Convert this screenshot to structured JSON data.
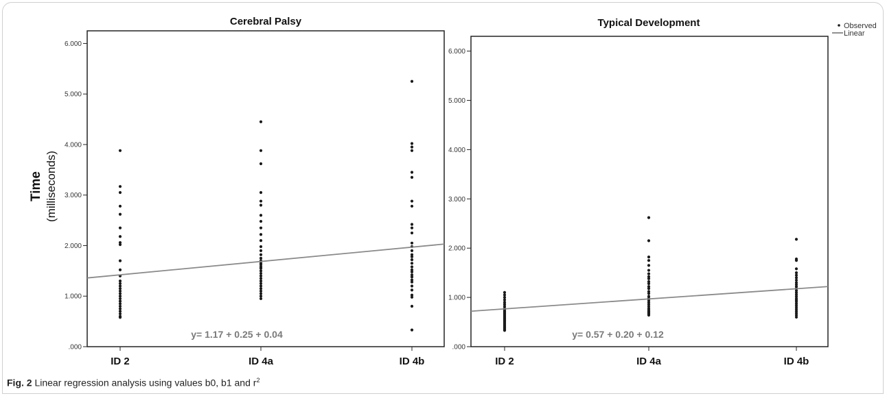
{
  "caption": {
    "label": "Fig. 2",
    "text": "Linear regression analysis using values b0, b1 and r",
    "superscript": "2"
  },
  "legend": {
    "observed": "Observed",
    "linear": "Linear"
  },
  "ylabel_main": "Time",
  "ylabel_sub": "(milliseconds)",
  "colors": {
    "points": "#1a1a1a",
    "fit_line": "#8a8a8a",
    "equation": "#7a7a7a"
  },
  "chart_data": [
    {
      "type": "scatter",
      "title": "Cerebral Palsy",
      "categories": [
        "ID 2",
        "ID 4a",
        "ID 4b"
      ],
      "y_tick_labels": [
        ".000",
        "1.000",
        "2.000",
        "3.000",
        "4.000",
        "5.000",
        "6.000"
      ],
      "ylim": [
        0,
        6.25
      ],
      "grid": false,
      "equation": "y= 1.17 + 0.25 + 0.04",
      "fit_line": {
        "y_at_left_edge": 1.36,
        "y_at_right_edge": 2.03
      },
      "points": [
        [
          3.88,
          3.17,
          3.05,
          2.78,
          2.62,
          2.35,
          2.18,
          2.06,
          2.02,
          1.7,
          1.52,
          1.4,
          1.3,
          1.25,
          1.2,
          1.15,
          1.1,
          1.05,
          1.0,
          0.95,
          0.9,
          0.85,
          0.8,
          0.75,
          0.7,
          0.65,
          0.6,
          0.58
        ],
        [
          4.45,
          3.88,
          3.62,
          3.05,
          2.88,
          2.8,
          2.6,
          2.48,
          2.35,
          2.22,
          2.1,
          1.98,
          1.9,
          1.82,
          1.75,
          1.7,
          1.65,
          1.62,
          1.58,
          1.55,
          1.5,
          1.45,
          1.4,
          1.35,
          1.3,
          1.25,
          1.2,
          1.15,
          1.1,
          1.05,
          1.0,
          0.95
        ],
        [
          5.25,
          4.02,
          3.95,
          3.88,
          3.45,
          3.35,
          2.88,
          2.78,
          2.42,
          2.35,
          2.25,
          2.05,
          1.98,
          1.9,
          1.82,
          1.78,
          1.72,
          1.65,
          1.58,
          1.52,
          1.48,
          1.42,
          1.38,
          1.32,
          1.28,
          1.2,
          1.12,
          1.02,
          0.98,
          0.8,
          0.33
        ]
      ]
    },
    {
      "type": "scatter",
      "title": "Typical Development",
      "categories": [
        "ID 2",
        "ID 4a",
        "ID 4b"
      ],
      "y_tick_labels": [
        ".000",
        "1.000",
        "2.000",
        "3.000",
        "4.000",
        "5.000",
        "6.000"
      ],
      "ylim": [
        0,
        6.3
      ],
      "grid": false,
      "equation": "y= 0.57 + 0.20 + 0.12",
      "fit_line": {
        "y_at_left_edge": 0.72,
        "y_at_right_edge": 1.22
      },
      "points": [
        [
          1.1,
          1.05,
          1.0,
          0.95,
          0.9,
          0.86,
          0.82,
          0.78,
          0.75,
          0.72,
          0.7,
          0.68,
          0.66,
          0.64,
          0.62,
          0.6,
          0.58,
          0.56,
          0.54,
          0.52,
          0.5,
          0.48,
          0.46,
          0.44,
          0.42,
          0.4,
          0.38,
          0.36,
          0.34,
          0.33
        ],
        [
          2.62,
          2.15,
          1.82,
          1.75,
          1.65,
          1.55,
          1.48,
          1.42,
          1.38,
          1.32,
          1.28,
          1.22,
          1.18,
          1.12,
          1.08,
          1.02,
          0.98,
          0.94,
          0.9,
          0.86,
          0.82,
          0.78,
          0.75,
          0.72,
          0.7,
          0.68,
          0.66,
          0.64
        ],
        [
          2.18,
          1.78,
          1.75,
          1.58,
          1.5,
          1.45,
          1.4,
          1.35,
          1.3,
          1.26,
          1.22,
          1.18,
          1.14,
          1.1,
          1.06,
          1.02,
          0.98,
          0.95,
          0.92,
          0.88,
          0.84,
          0.8,
          0.76,
          0.72,
          0.68,
          0.64,
          0.6
        ]
      ]
    }
  ]
}
